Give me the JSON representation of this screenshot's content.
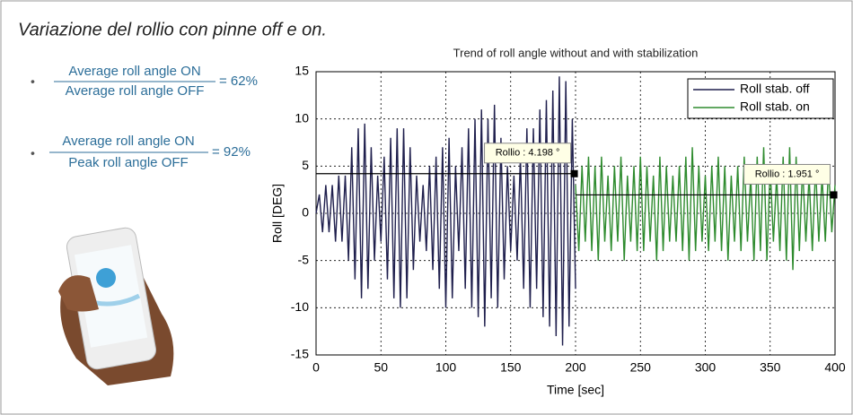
{
  "header": {
    "title": "Variazione del rollio con pinne off e on."
  },
  "formulas": [
    {
      "numerator": "Average roll angle ON",
      "denominator": "Average roll angle OFF",
      "result": "= 62%"
    },
    {
      "numerator": "Average roll angle ON",
      "denominator": "Peak roll angle OFF",
      "result": "= 92%"
    }
  ],
  "chart_data": {
    "type": "line",
    "title": "Trend of roll angle without and with stabilization",
    "x_label": "Time [sec]",
    "y_label": "Roll [DEG]",
    "xlim": [
      0,
      400
    ],
    "ylim": [
      -15,
      15
    ],
    "xticks": [
      0,
      50,
      100,
      150,
      200,
      250,
      300,
      350,
      400
    ],
    "yticks": [
      -15,
      -10,
      -5,
      0,
      5,
      10,
      15
    ],
    "grid": true,
    "legend": "top-right",
    "series": [
      {
        "name": "Roll stab. off",
        "color": "#1f1f4d",
        "x": [
          0,
          2.5,
          5,
          7.5,
          10,
          12.5,
          15,
          17.5,
          20,
          22.5,
          25,
          27.5,
          30,
          32.5,
          35,
          37.5,
          40,
          42.5,
          45,
          47.5,
          50,
          52.5,
          55,
          57.5,
          60,
          62.5,
          65,
          67.5,
          70,
          72.5,
          75,
          77.5,
          80,
          82.5,
          85,
          87.5,
          90,
          92.5,
          95,
          97.5,
          100,
          102.5,
          105,
          107.5,
          110,
          112.5,
          115,
          117.5,
          120,
          122.5,
          125,
          127.5,
          130,
          132.5,
          135,
          137.5,
          140,
          142.5,
          145,
          147.5,
          150,
          152.5,
          155,
          157.5,
          160,
          162.5,
          165,
          167.5,
          170,
          172.5,
          175,
          177.5,
          180,
          182.5,
          185,
          187.5,
          190,
          192.5,
          195,
          197.5,
          200
        ],
        "values": [
          0,
          2,
          -2,
          3,
          -2,
          3,
          -3,
          4,
          -3,
          4,
          -5,
          7,
          -7,
          9,
          -9,
          9.5,
          -8,
          7,
          -5,
          4,
          -3,
          6,
          -7,
          8,
          -9,
          9,
          -10,
          9,
          -9,
          7,
          -6,
          4,
          -3,
          3,
          -4,
          5,
          -6,
          6,
          -8,
          7,
          -10,
          8,
          -9,
          5,
          -4,
          7,
          -8,
          9,
          -10,
          10,
          -11,
          11,
          -12,
          10,
          -9,
          11.5,
          -10,
          8,
          -7,
          5,
          -4,
          4,
          -5,
          6,
          -8,
          9,
          -10,
          9,
          -8,
          11,
          -11,
          12,
          -12,
          13,
          -13,
          14.5,
          -14,
          14,
          -12,
          10,
          -8
        ]
      },
      {
        "name": "Roll stab. on",
        "color": "#2e8b2e",
        "x": [
          200,
          202.5,
          205,
          207.5,
          210,
          212.5,
          215,
          217.5,
          220,
          222.5,
          225,
          227.5,
          230,
          232.5,
          235,
          237.5,
          240,
          242.5,
          245,
          247.5,
          250,
          252.5,
          255,
          257.5,
          260,
          262.5,
          265,
          267.5,
          270,
          272.5,
          275,
          277.5,
          280,
          282.5,
          285,
          287.5,
          290,
          292.5,
          295,
          297.5,
          300,
          302.5,
          305,
          307.5,
          310,
          312.5,
          315,
          317.5,
          320,
          322.5,
          325,
          327.5,
          330,
          332.5,
          335,
          337.5,
          340,
          342.5,
          345,
          347.5,
          350,
          352.5,
          355,
          357.5,
          360,
          362.5,
          365,
          367.5,
          370,
          372.5,
          375,
          377.5,
          380,
          382.5,
          385,
          387.5,
          390,
          392.5,
          395,
          397.5,
          400
        ],
        "values": [
          3,
          -4,
          5,
          -3,
          6,
          -4,
          5,
          -5,
          6,
          -3,
          4,
          -4,
          5,
          -3,
          6,
          -5,
          4,
          -3,
          5,
          -4,
          6,
          -4,
          5,
          -3,
          4,
          -5,
          6,
          -4,
          5,
          -3,
          4,
          -3,
          5,
          -4,
          6,
          -5,
          7,
          -4,
          5,
          -3,
          4,
          -4,
          5,
          -3,
          6,
          -4,
          5,
          -5,
          4,
          -3,
          5,
          -4,
          6,
          -3,
          4,
          -5,
          6,
          -4,
          7,
          -5,
          5,
          -3,
          4,
          -4,
          6,
          -5,
          7,
          -6,
          6,
          -4,
          5,
          -3,
          4,
          -4,
          5,
          -3,
          4,
          -3,
          5,
          -2,
          3
        ]
      }
    ],
    "annotations": [
      {
        "label": "Rollio : 4.198 °",
        "x": 199,
        "y": 4.198
      },
      {
        "label": "Rollio : 1.951 °",
        "x": 399,
        "y": 1.951
      }
    ]
  }
}
